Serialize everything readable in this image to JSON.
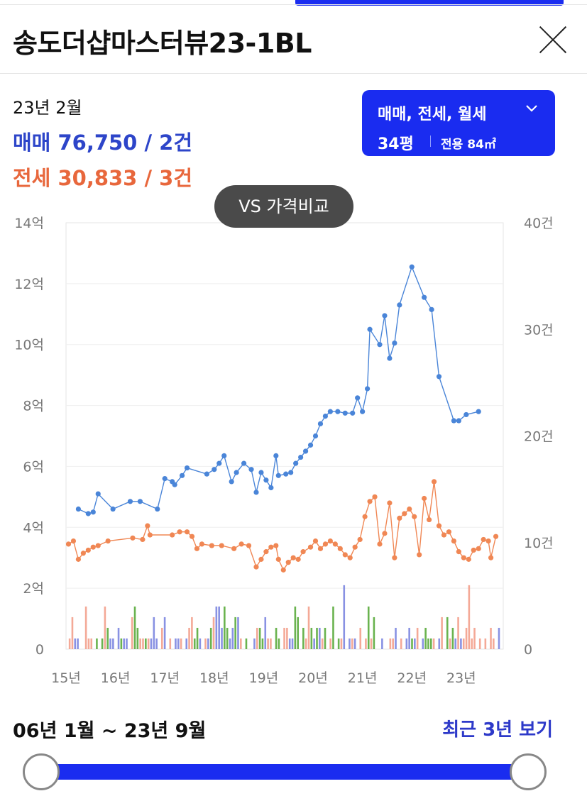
{
  "title": "송도더샵마스터뷰23-1BL",
  "summary": {
    "date": "23년 2월",
    "sale": "매매 76,750 / 2건",
    "jeonse": "전세 30,833 / 3건"
  },
  "filter": {
    "type_label": "매매, 전세, 월세",
    "pyeong": "34평",
    "area": "전용 84㎡"
  },
  "vs_button": "VS 가격비교",
  "colors": {
    "sale": "#4a85d8",
    "jeonse": "#f08754",
    "accent": "#1a2cf0",
    "bar_jeonse": "#f3a08c",
    "bar_sale": "#7c86e0",
    "bar_monthly": "#5aab3c"
  },
  "chart_data": {
    "type": "line",
    "x_tick_labels": [
      "15년",
      "16년",
      "17년",
      "18년",
      "19년",
      "20년",
      "21년",
      "22년",
      "23년"
    ],
    "y_left_labels": [
      "0",
      "2억",
      "4억",
      "6억",
      "8억",
      "10억",
      "12억",
      "14억"
    ],
    "y_left_ylim": [
      0,
      14
    ],
    "y_right_labels": [
      "0",
      "10건",
      "20건",
      "30건",
      "40건"
    ],
    "y_right_ylim": [
      0,
      40
    ],
    "series": [
      {
        "name": "매매",
        "points": [
          [
            15.25,
            4.6
          ],
          [
            15.45,
            4.45
          ],
          [
            15.55,
            4.5
          ],
          [
            15.65,
            5.1
          ],
          [
            15.95,
            4.6
          ],
          [
            16.3,
            4.85
          ],
          [
            16.5,
            4.85
          ],
          [
            16.85,
            4.6
          ],
          [
            17.0,
            5.6
          ],
          [
            17.15,
            5.5
          ],
          [
            17.2,
            5.4
          ],
          [
            17.35,
            5.7
          ],
          [
            17.45,
            5.95
          ],
          [
            17.85,
            5.75
          ],
          [
            18.0,
            5.9
          ],
          [
            18.1,
            6.1
          ],
          [
            18.2,
            6.35
          ],
          [
            18.35,
            5.5
          ],
          [
            18.45,
            5.8
          ],
          [
            18.6,
            6.1
          ],
          [
            18.75,
            5.9
          ],
          [
            18.85,
            5.15
          ],
          [
            18.95,
            5.8
          ],
          [
            19.05,
            5.55
          ],
          [
            19.15,
            5.3
          ],
          [
            19.25,
            6.35
          ],
          [
            19.3,
            5.7
          ],
          [
            19.45,
            5.75
          ],
          [
            19.55,
            5.8
          ],
          [
            19.65,
            6.1
          ],
          [
            19.75,
            6.3
          ],
          [
            19.85,
            6.5
          ],
          [
            19.95,
            6.7
          ],
          [
            20.05,
            7.0
          ],
          [
            20.15,
            7.4
          ],
          [
            20.25,
            7.65
          ],
          [
            20.35,
            7.8
          ],
          [
            20.5,
            7.8
          ],
          [
            20.65,
            7.75
          ],
          [
            20.8,
            7.75
          ],
          [
            20.9,
            8.25
          ],
          [
            21.0,
            7.8
          ],
          [
            21.1,
            8.55
          ],
          [
            21.15,
            10.5
          ],
          [
            21.35,
            10.0
          ],
          [
            21.45,
            10.95
          ],
          [
            21.55,
            9.55
          ],
          [
            21.65,
            10.05
          ],
          [
            21.75,
            11.3
          ],
          [
            22.0,
            12.55
          ],
          [
            22.25,
            11.55
          ],
          [
            22.4,
            11.15
          ],
          [
            22.55,
            8.95
          ],
          [
            22.85,
            7.5
          ],
          [
            22.95,
            7.5
          ],
          [
            23.1,
            7.7
          ],
          [
            23.35,
            7.8
          ]
        ]
      },
      {
        "name": "전세",
        "points": [
          [
            15.05,
            3.45
          ],
          [
            15.15,
            3.55
          ],
          [
            15.25,
            2.95
          ],
          [
            15.35,
            3.15
          ],
          [
            15.45,
            3.25
          ],
          [
            15.55,
            3.35
          ],
          [
            15.65,
            3.4
          ],
          [
            15.85,
            3.55
          ],
          [
            16.35,
            3.65
          ],
          [
            16.55,
            3.6
          ],
          [
            16.65,
            4.05
          ],
          [
            16.7,
            3.75
          ],
          [
            17.15,
            3.75
          ],
          [
            17.3,
            3.85
          ],
          [
            17.45,
            3.85
          ],
          [
            17.55,
            3.7
          ],
          [
            17.65,
            3.3
          ],
          [
            17.75,
            3.45
          ],
          [
            17.95,
            3.4
          ],
          [
            18.15,
            3.4
          ],
          [
            18.4,
            3.3
          ],
          [
            18.55,
            3.45
          ],
          [
            18.7,
            3.4
          ],
          [
            18.85,
            2.7
          ],
          [
            18.95,
            2.95
          ],
          [
            19.05,
            3.2
          ],
          [
            19.15,
            3.35
          ],
          [
            19.25,
            3.4
          ],
          [
            19.3,
            2.95
          ],
          [
            19.4,
            2.6
          ],
          [
            19.5,
            2.85
          ],
          [
            19.6,
            3.0
          ],
          [
            19.7,
            2.95
          ],
          [
            19.8,
            3.2
          ],
          [
            19.95,
            3.35
          ],
          [
            20.05,
            3.55
          ],
          [
            20.15,
            3.3
          ],
          [
            20.25,
            3.45
          ],
          [
            20.35,
            3.55
          ],
          [
            20.45,
            3.45
          ],
          [
            20.55,
            3.3
          ],
          [
            20.65,
            3.1
          ],
          [
            20.75,
            3.0
          ],
          [
            20.85,
            3.35
          ],
          [
            20.95,
            3.6
          ],
          [
            21.05,
            4.35
          ],
          [
            21.15,
            4.85
          ],
          [
            21.25,
            5.0
          ],
          [
            21.35,
            3.45
          ],
          [
            21.45,
            3.8
          ],
          [
            21.55,
            4.8
          ],
          [
            21.65,
            3.0
          ],
          [
            21.75,
            4.3
          ],
          [
            21.85,
            4.45
          ],
          [
            21.95,
            4.6
          ],
          [
            22.05,
            4.35
          ],
          [
            22.15,
            3.1
          ],
          [
            22.25,
            4.95
          ],
          [
            22.35,
            4.25
          ],
          [
            22.45,
            5.5
          ],
          [
            22.55,
            4.05
          ],
          [
            22.65,
            3.75
          ],
          [
            22.75,
            3.85
          ],
          [
            22.85,
            3.55
          ],
          [
            22.95,
            3.2
          ],
          [
            23.05,
            3.0
          ],
          [
            23.15,
            2.95
          ],
          [
            23.25,
            3.25
          ],
          [
            23.35,
            3.3
          ],
          [
            23.45,
            3.6
          ],
          [
            23.55,
            3.55
          ],
          [
            23.6,
            3.0
          ],
          [
            23.7,
            3.7
          ]
        ]
      }
    ]
  },
  "range_label": "06년 1월 ~ 23년 9월",
  "recent_button": "최근 3년 보기",
  "slider": {
    "start": 0.0,
    "end": 1.0
  }
}
